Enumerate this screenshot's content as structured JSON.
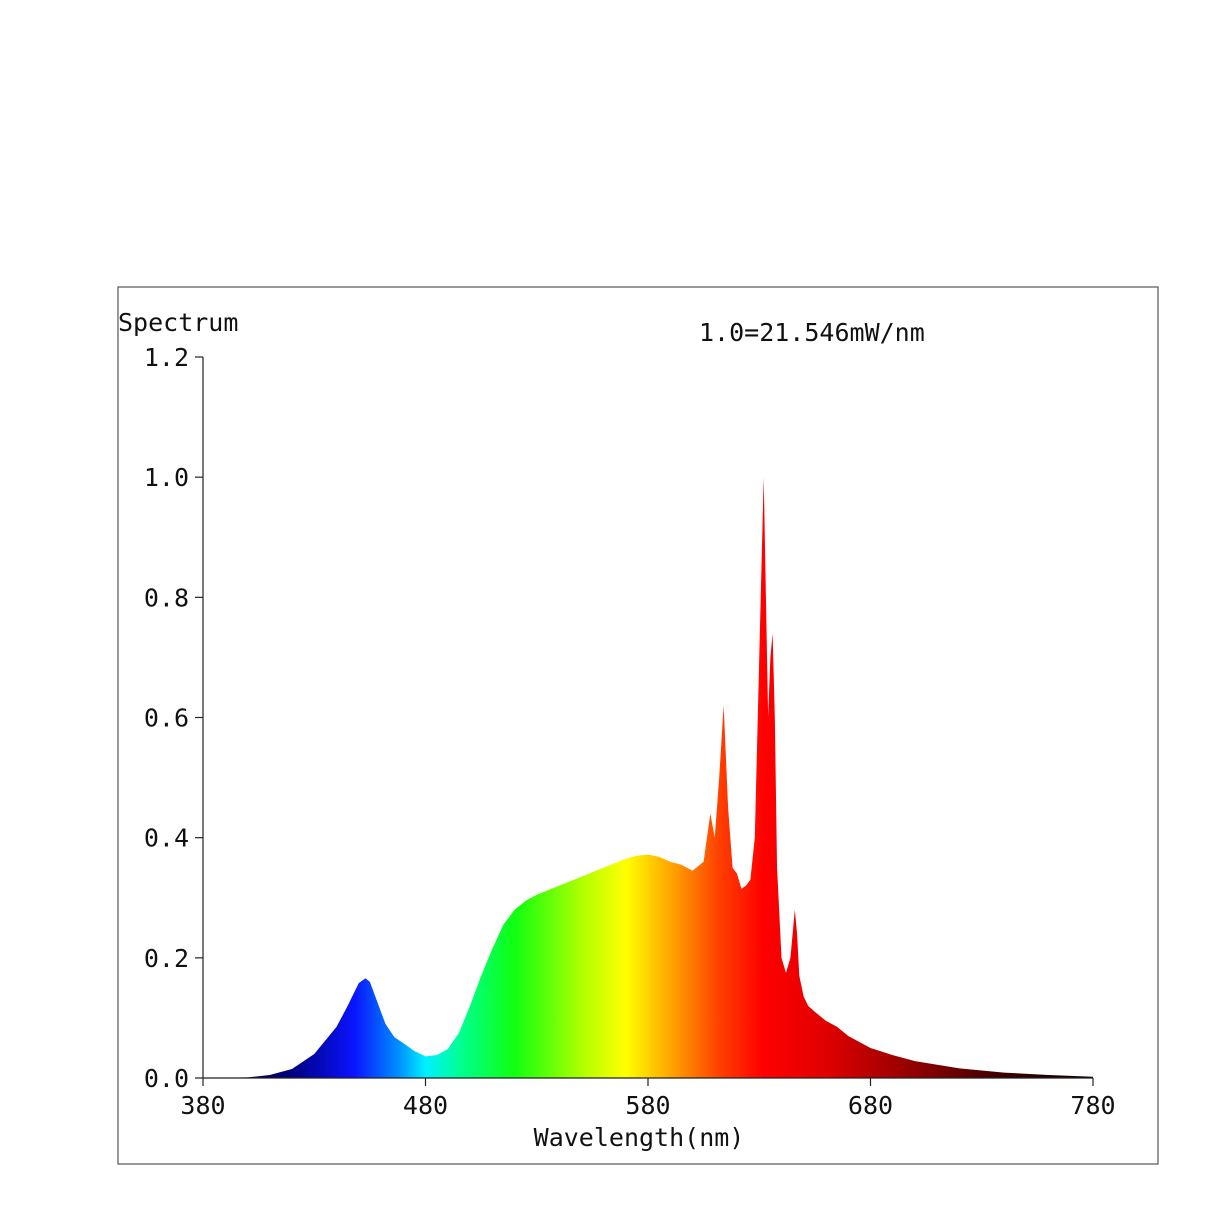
{
  "chart_data": {
    "type": "area",
    "title": "Spectrum",
    "annotation": "1.0=21.546mW/nm",
    "xlabel": "Wavelength(nm)",
    "ylabel": "",
    "xlim": [
      380,
      780
    ],
    "ylim": [
      0,
      1.2
    ],
    "x_ticks": [
      "380",
      "480",
      "580",
      "680",
      "780"
    ],
    "y_ticks": [
      "0.0",
      "0.2",
      "0.4",
      "0.6",
      "0.8",
      "1.0",
      "1.2"
    ],
    "grid": false,
    "legend": "none",
    "color_mode": "visible-spectrum gradient fill",
    "series": [
      {
        "x": [
          380,
          400,
          410,
          420,
          430,
          440,
          445,
          450,
          453,
          455,
          458,
          462,
          466,
          470,
          475,
          480,
          485,
          490,
          495,
          500,
          505,
          510,
          515,
          520,
          525,
          530,
          540,
          550,
          560,
          570,
          575,
          580,
          585,
          590,
          595,
          600,
          605,
          608,
          610,
          612,
          614,
          616,
          618,
          620,
          622,
          624,
          626,
          628,
          630,
          632,
          633,
          634,
          635,
          636,
          637,
          638,
          640,
          642,
          644,
          646,
          647,
          648,
          650,
          652,
          655,
          660,
          665,
          670,
          680,
          690,
          700,
          720,
          740,
          760,
          780
        ],
        "y": [
          0.0,
          0.001,
          0.005,
          0.015,
          0.04,
          0.085,
          0.12,
          0.158,
          0.166,
          0.16,
          0.13,
          0.09,
          0.068,
          0.058,
          0.045,
          0.036,
          0.038,
          0.048,
          0.075,
          0.12,
          0.17,
          0.215,
          0.255,
          0.28,
          0.295,
          0.305,
          0.32,
          0.335,
          0.35,
          0.365,
          0.37,
          0.372,
          0.368,
          0.36,
          0.355,
          0.345,
          0.36,
          0.44,
          0.4,
          0.5,
          0.62,
          0.45,
          0.35,
          0.34,
          0.315,
          0.32,
          0.33,
          0.4,
          0.7,
          1.0,
          0.8,
          0.6,
          0.7,
          0.74,
          0.6,
          0.35,
          0.2,
          0.175,
          0.2,
          0.28,
          0.24,
          0.17,
          0.135,
          0.12,
          0.11,
          0.095,
          0.085,
          0.07,
          0.05,
          0.038,
          0.028,
          0.016,
          0.009,
          0.005,
          0.002
        ]
      }
    ]
  }
}
